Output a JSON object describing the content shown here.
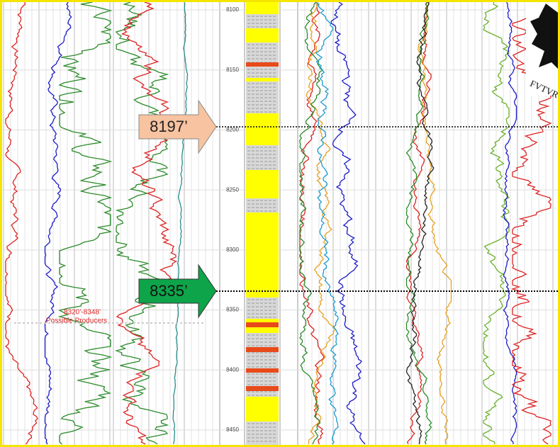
{
  "depth_labels": [
    8100,
    8150,
    8200,
    8250,
    8300,
    8350,
    8400,
    8450
  ],
  "markers": [
    {
      "label": "8197’"
    },
    {
      "label": "8335’"
    }
  ],
  "interval": {
    "range": "8320’-8348’",
    "note": "Possible Producers"
  },
  "emblem": {
    "motto": "FVTVRVM"
  }
}
